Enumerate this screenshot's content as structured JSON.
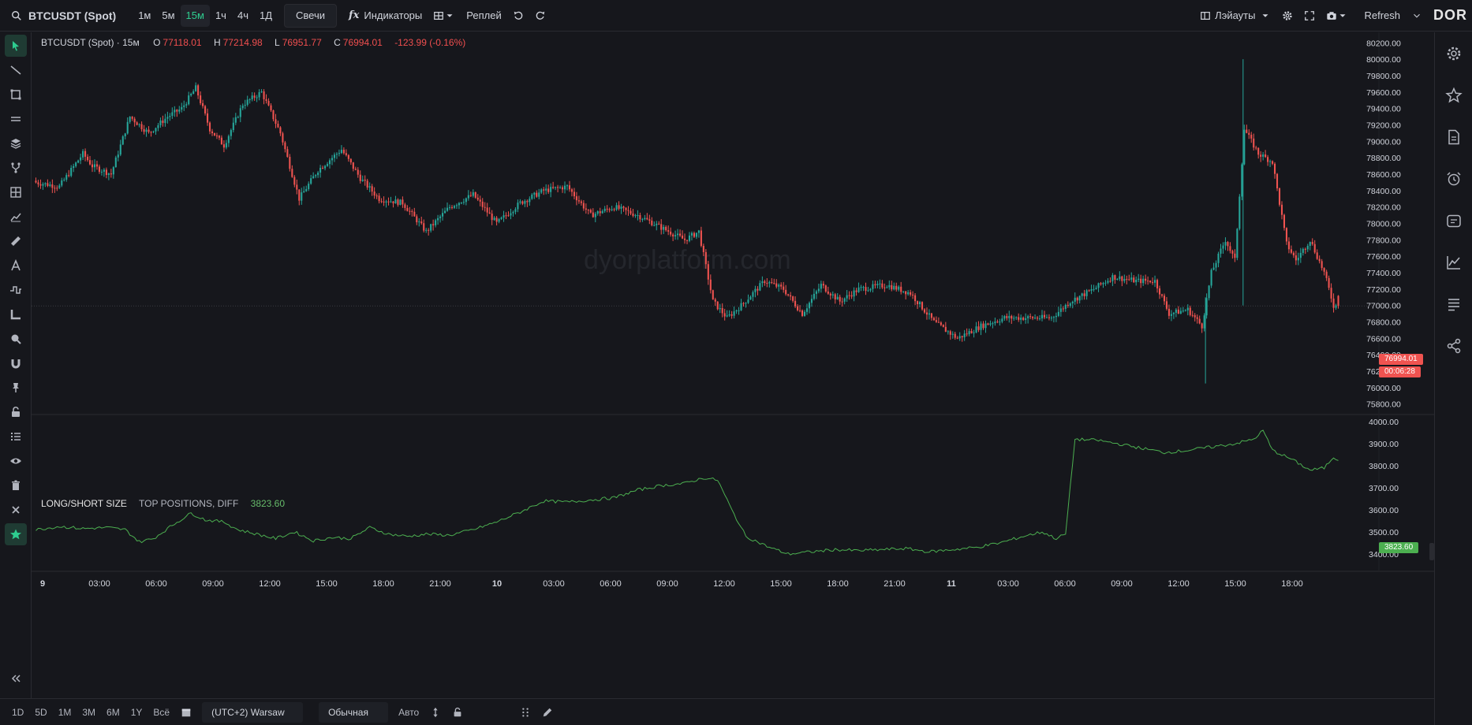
{
  "toolbar": {
    "symbol": "BTCUSDT (Spot)",
    "timeframes": [
      "1м",
      "5м",
      "15м",
      "1ч",
      "4ч",
      "1Д"
    ],
    "active_timeframe": "15м",
    "chart_type": "Свечи",
    "indicators": "Индикаторы",
    "replay": "Реплей",
    "layouts": "Лэйауты",
    "refresh": "Refresh",
    "logo": "DOR"
  },
  "legend": {
    "symbol": "BTCUSDT (Spot) · 15м",
    "open_label": "O",
    "open": "77118.01",
    "high_label": "H",
    "high": "77214.98",
    "low_label": "L",
    "low": "76951.77",
    "close_label": "C",
    "close": "76994.01",
    "change": "-123.99 (-0.16%)"
  },
  "indicator_legend": {
    "name": "LONG/SHORT SIZE",
    "params": "TOP POSITIONS, DIFF",
    "value": "3823.60"
  },
  "watermark": "dyorplatform.com",
  "price_tags": {
    "last_price": "76994.01",
    "countdown": "00:06:28",
    "indicator_last": "3823.60"
  },
  "colors": {
    "up": "#26a69a",
    "down": "#ef5350",
    "indicator_line": "#4caf50",
    "accent": "#2ecc8f"
  },
  "chart_data": [
    {
      "type": "candlestick",
      "title": "BTCUSDT (Spot) · 15м",
      "y_ticks": [
        "80200.00",
        "80000.00",
        "79800.00",
        "79600.00",
        "79400.00",
        "79200.00",
        "79000.00",
        "78800.00",
        "78600.00",
        "78400.00",
        "78200.00",
        "78000.00",
        "77800.00",
        "77600.00",
        "77400.00",
        "77200.00",
        "77000.00",
        "76800.00",
        "76600.00",
        "76400.00",
        "76200.00",
        "76000.00",
        "75800.00"
      ],
      "ylim": [
        75720,
        80280
      ],
      "x_ticks": [
        "9",
        "03:00",
        "06:00",
        "09:00",
        "12:00",
        "15:00",
        "18:00",
        "21:00",
        "10",
        "03:00",
        "06:00",
        "09:00",
        "12:00",
        "15:00",
        "18:00",
        "21:00",
        "11",
        "03:00",
        "06:00",
        "09:00",
        "12:00",
        "15:00",
        "18:00"
      ],
      "anchors": [
        [
          0,
          78500
        ],
        [
          10,
          78450
        ],
        [
          20,
          78850
        ],
        [
          24,
          78700
        ],
        [
          32,
          78600
        ],
        [
          40,
          79300
        ],
        [
          48,
          79100
        ],
        [
          56,
          79300
        ],
        [
          62,
          79400
        ],
        [
          68,
          79650
        ],
        [
          74,
          79150
        ],
        [
          80,
          78950
        ],
        [
          88,
          79450
        ],
        [
          96,
          79600
        ],
        [
          104,
          79100
        ],
        [
          112,
          78300
        ],
        [
          120,
          78650
        ],
        [
          130,
          78900
        ],
        [
          138,
          78550
        ],
        [
          146,
          78300
        ],
        [
          156,
          78250
        ],
        [
          166,
          77900
        ],
        [
          176,
          78200
        ],
        [
          186,
          78350
        ],
        [
          196,
          78000
        ],
        [
          206,
          78250
        ],
        [
          216,
          78400
        ],
        [
          226,
          78450
        ],
        [
          236,
          78100
        ],
        [
          246,
          78200
        ],
        [
          256,
          78100
        ],
        [
          266,
          77950
        ],
        [
          276,
          77800
        ],
        [
          282,
          77900
        ],
        [
          288,
          77050
        ],
        [
          294,
          76850
        ],
        [
          300,
          77000
        ],
        [
          310,
          77300
        ],
        [
          318,
          77200
        ],
        [
          326,
          76900
        ],
        [
          334,
          77250
        ],
        [
          342,
          77050
        ],
        [
          350,
          77200
        ],
        [
          362,
          77250
        ],
        [
          372,
          77150
        ],
        [
          382,
          76800
        ],
        [
          392,
          76600
        ],
        [
          402,
          76750
        ],
        [
          412,
          76850
        ],
        [
          422,
          76850
        ],
        [
          432,
          76850
        ],
        [
          440,
          77050
        ],
        [
          450,
          77200
        ],
        [
          458,
          77350
        ],
        [
          468,
          77300
        ],
        [
          476,
          77300
        ],
        [
          482,
          76900
        ],
        [
          490,
          76950
        ],
        [
          496,
          76750
        ],
        [
          500,
          77400
        ],
        [
          506,
          77800
        ],
        [
          510,
          77550
        ],
        [
          514,
          79150
        ],
        [
          520,
          78850
        ],
        [
          526,
          78750
        ],
        [
          532,
          77750
        ],
        [
          536,
          77550
        ],
        [
          542,
          77800
        ],
        [
          548,
          77400
        ],
        [
          552,
          77000
        ],
        [
          554,
          76994
        ]
      ],
      "last": {
        "open": 77118.01,
        "high": 77214.98,
        "low": 76951.77,
        "close": 76994.01,
        "change": -123.99
      }
    },
    {
      "type": "line",
      "title": "LONG/SHORT SIZE",
      "y_ticks": [
        "4000.00",
        "3900.00",
        "3800.00",
        "3700.00",
        "3600.00",
        "3500.00",
        "3400.00"
      ],
      "ylim": [
        3370,
        4015
      ],
      "series": [
        {
          "name": "TOP POSITIONS, DIFF",
          "anchors": [
            [
              0,
              3510
            ],
            [
              10,
              3525
            ],
            [
              20,
              3515
            ],
            [
              30,
              3520
            ],
            [
              38,
              3510
            ],
            [
              44,
              3455
            ],
            [
              50,
              3470
            ],
            [
              58,
              3530
            ],
            [
              66,
              3585
            ],
            [
              72,
              3555
            ],
            [
              80,
              3545
            ],
            [
              86,
              3510
            ],
            [
              94,
              3490
            ],
            [
              102,
              3470
            ],
            [
              110,
              3500
            ],
            [
              118,
              3460
            ],
            [
              126,
              3475
            ],
            [
              134,
              3470
            ],
            [
              142,
              3520
            ],
            [
              150,
              3490
            ],
            [
              158,
              3480
            ],
            [
              166,
              3490
            ],
            [
              176,
              3485
            ],
            [
              186,
              3510
            ],
            [
              196,
              3545
            ],
            [
              206,
              3590
            ],
            [
              216,
              3640
            ],
            [
              226,
              3635
            ],
            [
              236,
              3645
            ],
            [
              246,
              3655
            ],
            [
              256,
              3690
            ],
            [
              266,
              3710
            ],
            [
              276,
              3720
            ],
            [
              284,
              3745
            ],
            [
              290,
              3735
            ],
            [
              296,
              3600
            ],
            [
              302,
              3480
            ],
            [
              312,
              3430
            ],
            [
              320,
              3400
            ],
            [
              330,
              3410
            ],
            [
              340,
              3420
            ],
            [
              350,
              3415
            ],
            [
              360,
              3420
            ],
            [
              370,
              3425
            ],
            [
              380,
              3410
            ],
            [
              390,
              3420
            ],
            [
              400,
              3430
            ],
            [
              410,
              3450
            ],
            [
              420,
              3480
            ],
            [
              428,
              3500
            ],
            [
              434,
              3470
            ],
            [
              438,
              3490
            ],
            [
              442,
              3920
            ],
            [
              452,
              3915
            ],
            [
              460,
              3900
            ],
            [
              470,
              3880
            ],
            [
              480,
              3860
            ],
            [
              490,
              3870
            ],
            [
              500,
              3885
            ],
            [
              510,
              3900
            ],
            [
              518,
              3920
            ],
            [
              522,
              3960
            ],
            [
              526,
              3870
            ],
            [
              534,
              3830
            ],
            [
              542,
              3780
            ],
            [
              548,
              3790
            ],
            [
              552,
              3840
            ],
            [
              554,
              3823.6
            ]
          ]
        }
      ]
    }
  ]
}
